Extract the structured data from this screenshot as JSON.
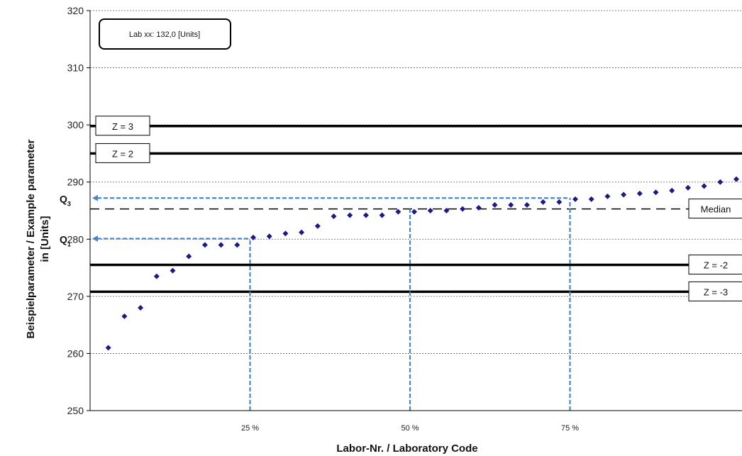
{
  "chart_data": {
    "type": "scatter",
    "title": "",
    "xlabel": "Labor-Nr. / Laboratory Code",
    "ylabel_line1": "Beispielparameter  / Example parameter",
    "ylabel_line2": "in [Units]",
    "ylim": [
      250,
      320
    ],
    "yticks": [
      "250",
      "260",
      "270",
      "280",
      "290",
      "300",
      "310",
      "320"
    ],
    "xlim": [
      0,
      100
    ],
    "percent_ticks": [
      {
        "label": "25 %",
        "at": 25
      },
      {
        "label": "50 %",
        "at": 50
      },
      {
        "label": "75 %",
        "at": 75
      }
    ],
    "grid": "horizontal dotted",
    "lab_box": "Lab xx: 132,0  [Units]",
    "reference_lines": [
      {
        "label": "Z = 3",
        "y": 299.8,
        "style": "solid-thick"
      },
      {
        "label": "Z = 2",
        "y": 295.0,
        "style": "solid-thick"
      },
      {
        "label": "Median",
        "y": 285.3,
        "style": "dashed"
      },
      {
        "label": "Z = -2",
        "y": 275.5,
        "style": "solid-thick"
      },
      {
        "label": "Z = -3",
        "y": 270.8,
        "style": "solid-thick"
      }
    ],
    "quartiles": [
      {
        "label": "Q",
        "sub": "1",
        "y": 280.1,
        "at_percent": 25
      },
      {
        "label": "Q",
        "sub": "3",
        "y": 287.2,
        "at_percent": 75
      }
    ],
    "median_marker": {
      "y": 285.3,
      "at_percent": 50
    },
    "x": [
      2.5,
      5,
      7.5,
      10,
      12.5,
      15,
      17.5,
      20,
      22.5,
      25,
      27.5,
      30,
      32.5,
      35,
      37.5,
      40,
      42.5,
      45,
      47.5,
      50,
      52.5,
      55,
      57.5,
      60,
      62.5,
      65,
      67.5,
      70,
      72.5,
      75,
      77.5,
      80,
      82.5,
      85,
      87.5,
      90,
      92.5,
      95,
      97.5,
      100
    ],
    "values": [
      261.0,
      266.5,
      268.0,
      273.5,
      274.5,
      277.0,
      279.0,
      279.0,
      279.0,
      280.3,
      280.5,
      281.0,
      281.2,
      282.3,
      284.0,
      284.2,
      284.2,
      284.2,
      284.8,
      284.8,
      285.0,
      285.0,
      285.3,
      285.5,
      286.0,
      286.0,
      286.0,
      286.5,
      286.5,
      287.0,
      287.0,
      287.5,
      287.8,
      288.0,
      288.2,
      288.5,
      289.0,
      289.3,
      290.0,
      290.5
    ],
    "colors": {
      "points": "#1c1c80",
      "quartile_lines": "#4a86c5",
      "z_lines": "#000000",
      "grid": "#555555"
    }
  }
}
